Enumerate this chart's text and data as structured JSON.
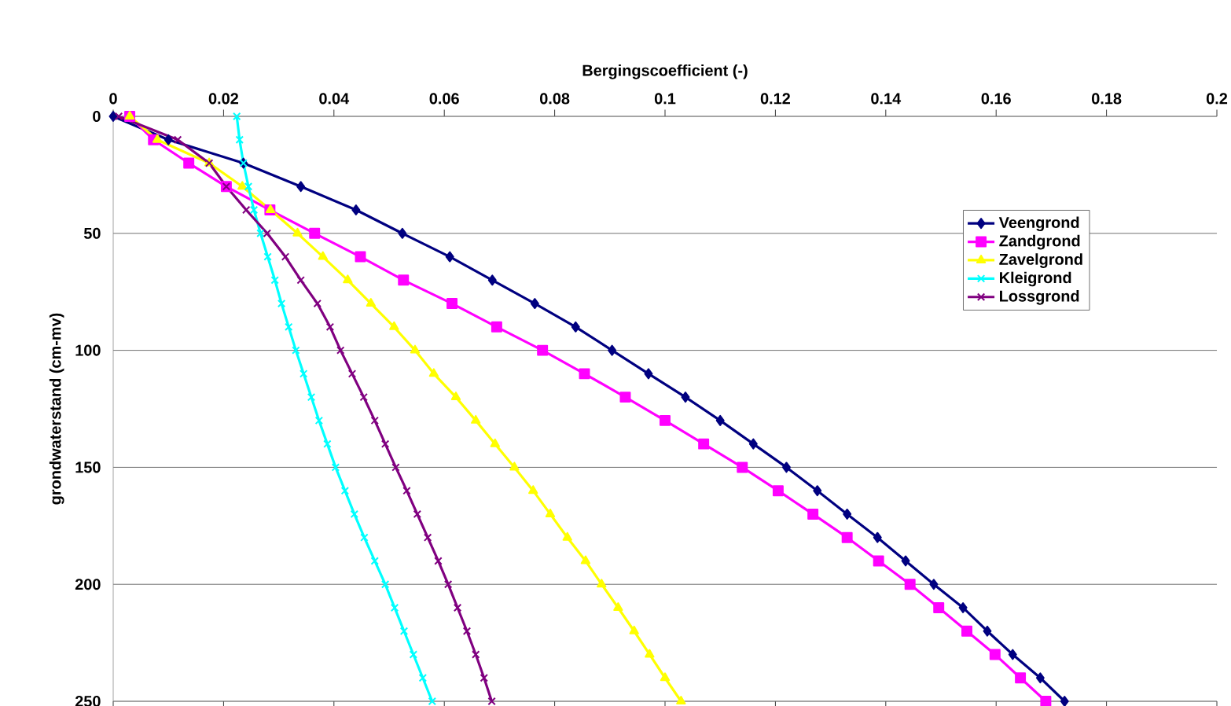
{
  "chart_data": {
    "type": "line",
    "xlabel": "Bergingscoefficient (-)",
    "ylabel": "grondwaterstand (cm-mv)",
    "xlim": [
      0,
      0.2
    ],
    "xticks": [
      0,
      0.02,
      0.04,
      0.06,
      0.08,
      0.1,
      0.12,
      0.14,
      0.16,
      0.18,
      0.2
    ],
    "ylim": [
      250,
      0
    ],
    "yticks": [
      0,
      50,
      100,
      150,
      200,
      250
    ],
    "grid": "y",
    "legend": "right",
    "line_style": "solid",
    "series": [
      {
        "name": "Veengrond",
        "color": "#000080",
        "marker": "diamond",
        "x": [
          0,
          0.01,
          0.0236,
          0.034,
          0.044,
          0.0524,
          0.061,
          0.0687,
          0.0764,
          0.0838,
          0.0904,
          0.097,
          0.1037,
          0.11,
          0.116,
          0.122,
          0.1276,
          0.133,
          0.1385,
          0.1436,
          0.1487,
          0.154,
          0.1584,
          0.163,
          0.168,
          0.1724
        ],
        "values": [
          0,
          10,
          20,
          30,
          40,
          50,
          60,
          70,
          80,
          90,
          100,
          110,
          120,
          130,
          140,
          150,
          160,
          170,
          180,
          190,
          200,
          210,
          220,
          230,
          240,
          250
        ]
      },
      {
        "name": "Zandgrond",
        "color": "#ff00ff",
        "marker": "square",
        "x": [
          0.003,
          0.0073,
          0.0137,
          0.0205,
          0.0284,
          0.0365,
          0.0448,
          0.0526,
          0.0614,
          0.0695,
          0.0778,
          0.0854,
          0.0928,
          0.1,
          0.107,
          0.114,
          0.1205,
          0.1268,
          0.133,
          0.1387,
          0.1444,
          0.1496,
          0.1547,
          0.1598,
          0.1644,
          0.169
        ],
        "values": [
          0,
          10,
          20,
          30,
          40,
          50,
          60,
          70,
          80,
          90,
          100,
          110,
          120,
          130,
          140,
          150,
          160,
          170,
          180,
          190,
          200,
          210,
          220,
          230,
          240,
          250
        ]
      },
      {
        "name": "Zavelgrond",
        "color": "#ffff00",
        "marker": "triangle",
        "x": [
          0.003,
          0.008,
          0.0174,
          0.0234,
          0.0285,
          0.0334,
          0.038,
          0.0425,
          0.0467,
          0.0509,
          0.0547,
          0.0581,
          0.0621,
          0.0657,
          0.0692,
          0.0727,
          0.0761,
          0.0792,
          0.0823,
          0.0856,
          0.0885,
          0.0915,
          0.0944,
          0.0972,
          0.1,
          0.1029
        ],
        "values": [
          0,
          10,
          20,
          30,
          40,
          50,
          60,
          70,
          80,
          90,
          100,
          110,
          120,
          130,
          140,
          150,
          160,
          170,
          180,
          190,
          200,
          210,
          220,
          230,
          240,
          250
        ]
      },
      {
        "name": "Kleigrond",
        "color": "#00ffff",
        "marker": "cross",
        "x": [
          0.0224,
          0.0229,
          0.0236,
          0.0245,
          0.0255,
          0.0267,
          0.028,
          0.0293,
          0.0305,
          0.0318,
          0.0331,
          0.0345,
          0.0359,
          0.0373,
          0.0388,
          0.0403,
          0.042,
          0.0437,
          0.0455,
          0.0474,
          0.0493,
          0.051,
          0.0527,
          0.0544,
          0.0561,
          0.0578
        ],
        "values": [
          0,
          10,
          20,
          30,
          40,
          50,
          60,
          70,
          80,
          90,
          100,
          110,
          120,
          130,
          140,
          150,
          160,
          170,
          180,
          190,
          200,
          210,
          220,
          230,
          240,
          250
        ]
      },
      {
        "name": "Lossgrond",
        "color": "#800080",
        "marker": "cross",
        "x": [
          0.001,
          0.0117,
          0.0174,
          0.0205,
          0.0241,
          0.0279,
          0.0312,
          0.034,
          0.037,
          0.0393,
          0.0412,
          0.0433,
          0.0454,
          0.0474,
          0.0493,
          0.0512,
          0.0532,
          0.0551,
          0.057,
          0.0589,
          0.0607,
          0.0624,
          0.0641,
          0.0657,
          0.0672,
          0.0686
        ],
        "values": [
          0,
          10,
          20,
          30,
          40,
          50,
          60,
          70,
          80,
          90,
          100,
          110,
          120,
          130,
          140,
          150,
          160,
          170,
          180,
          190,
          200,
          210,
          220,
          230,
          240,
          250
        ]
      }
    ]
  }
}
